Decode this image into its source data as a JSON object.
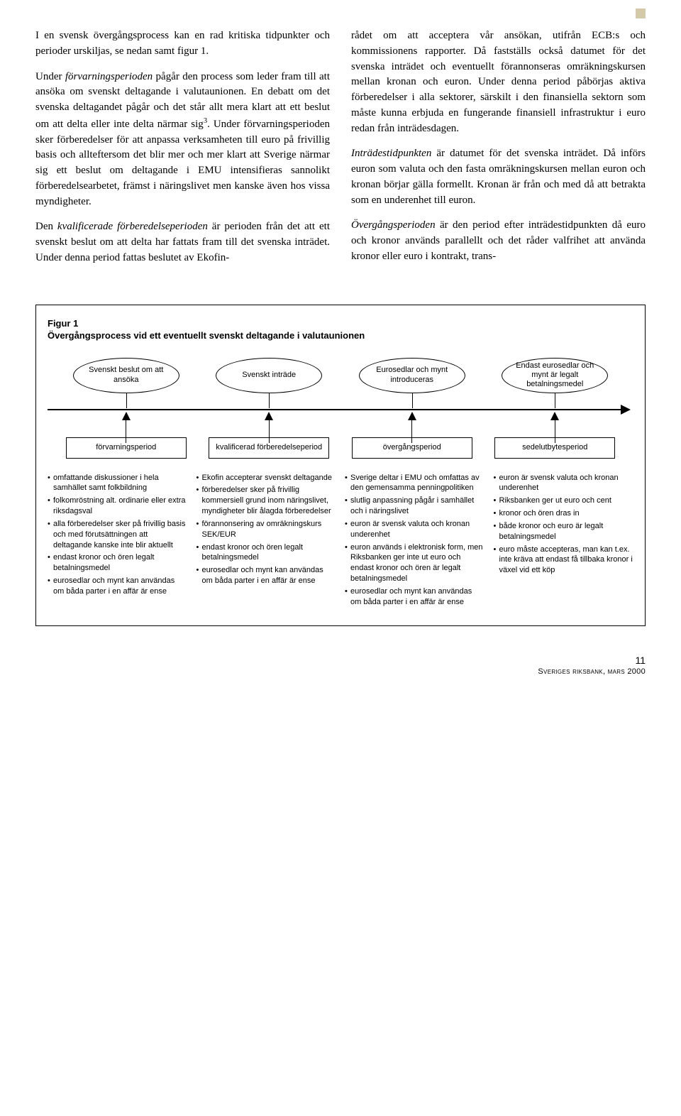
{
  "body": {
    "left": {
      "p1_pre": "I en svensk övergångsprocess kan en rad kritiska tidpunkter och perioder urskiljas, se nedan samt figur 1.",
      "p2_a": "Under ",
      "p2_it": "förvarningsperioden",
      "p2_b": " pågår den process som leder fram till att ansöka om svenskt deltagande i valutaunionen. En debatt om det svenska deltagandet pågår och det står allt mera klart att ett beslut om att delta eller inte delta närmar sig",
      "p2_sup": "3",
      "p2_c": ". Under förvarningsperioden sker förberedelser för att anpassa verksamheten till euro på frivillig basis och allteftersom det blir mer och mer klart att Sverige närmar sig ett beslut om deltagande i EMU intensifieras sannolikt förberedelsearbetet, främst i näringslivet men kanske även hos vissa myndigheter.",
      "p3_a": "Den ",
      "p3_it": "kvalificerade förberedelseperioden",
      "p3_b": " är perioden från det att ett svenskt beslut om att delta har fattats fram till det svenska inträdet. Under denna period fattas beslutet av Ekofin-"
    },
    "right": {
      "p1": "rådet om att acceptera vår ansökan, utifrån ECB:s och kommissionens rapporter. Då fastställs också datumet för det svenska inträdet och eventuellt förannonseras omräkningskursen mellan kronan och euron. Under denna period påbörjas aktiva förberedelser i alla sektorer, särskilt i den finansiella sektorn som måste kunna erbjuda en fungerande finansiell infrastruktur i euro redan från inträdesdagen.",
      "p2_it": "Inträdestidpunkten",
      "p2_b": " är datumet för det svenska inträdet. Då införs euron som valuta och den fasta omräkningskursen mellan euron och kronan börjar gälla formellt. Kronan är från och med då att betrakta som en underenhet till euron.",
      "p3_it": "Övergångsperioden",
      "p3_b": " är den period efter inträdestidpunkten då euro och kronor används parallellt och det råder valfrihet att använda kronor eller euro i kontrakt, trans-"
    }
  },
  "figure": {
    "title": "Figur 1",
    "subtitle": "Övergångsprocess vid ett eventuellt svenskt deltagande i valutaunionen",
    "ellipses": [
      "Svenskt beslut om att ansöka",
      "Svenskt inträde",
      "Eurosedlar och mynt introduceras",
      "Endast eurosedlar och mynt är legalt betalningsmedel"
    ],
    "periods": [
      "förvarningsperiod",
      "kvalificerad förberedelseperiod",
      "övergångsperiod",
      "sedelutbytesperiod"
    ],
    "details": [
      [
        "omfattande diskussioner i hela samhället samt folkbildning",
        "folkomröstning alt. ordinarie eller extra riksdagsval",
        "alla förberedelser sker på frivillig basis och med förutsättningen att deltagande kanske inte blir aktuellt",
        "endast kronor och ören legalt betalningsmedel",
        "eurosedlar och mynt kan användas om båda parter i en affär är ense"
      ],
      [
        "Ekofin accepterar svenskt deltagande",
        "förberedelser sker på frivillig kommersiell grund inom näringslivet, myndigheter blir ålagda förberedelser",
        "förannonsering av omräkningskurs SEK/EUR",
        "endast kronor och ören legalt betalningsmedel",
        "eurosedlar och mynt kan användas om båda parter i en affär är ense"
      ],
      [
        "Sverige deltar i EMU och omfattas av den gemensamma penningpolitiken",
        "slutlig anpassning pågår i samhället och i näringslivet",
        "euron är svensk valuta och kronan underenhet",
        "euron används i elektronisk form, men Riksbanken ger inte ut euro och endast kronor och ören är legalt betalningsmedel",
        "eurosedlar och mynt kan användas om båda parter i en affär är ense"
      ],
      [
        "euron är svensk valuta och kronan underenhet",
        "Riksbanken ger ut euro och cent",
        "kronor och ören dras in",
        "både kronor och euro är legalt betalningsmedel",
        "euro måste accepteras, man kan t.ex. inte kräva att endast få tillbaka kronor i växel vid ett köp"
      ]
    ]
  },
  "footer": {
    "page": "11",
    "source": "Sveriges riksbank, mars 2000"
  }
}
